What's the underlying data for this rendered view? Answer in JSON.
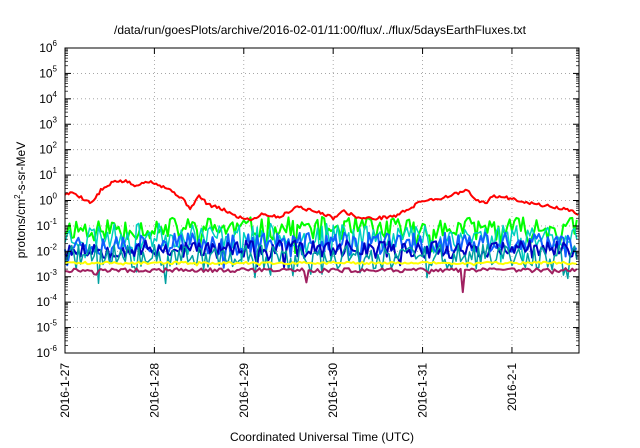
{
  "chart_data": {
    "type": "line",
    "title": "/data/run/goesPlots/archive/2016-02-01/11:00/flux/../flux/5daysEarthFluxes.txt",
    "xlabel": "Coordinated Universal Time (UTC)",
    "ylabel": {
      "base": "protons/cm",
      "sup": "2",
      "rest": "-s-sr-MeV"
    },
    "yscale": "log",
    "ylim": [
      1e-06,
      1000000.0
    ],
    "xlim": [
      "2016-01-27",
      "2016-02-01 18:00"
    ],
    "grid": true,
    "x_ticks": [
      "2016-1-27",
      "2016-1-28",
      "2016-1-29",
      "2016-1-30",
      "2016-1-31",
      "2016-2-1"
    ],
    "y_ticks": [
      {
        "base": "10",
        "exp": "-6"
      },
      {
        "base": "10",
        "exp": "-5"
      },
      {
        "base": "10",
        "exp": "-4"
      },
      {
        "base": "10",
        "exp": "-3"
      },
      {
        "base": "10",
        "exp": "-2"
      },
      {
        "base": "10",
        "exp": "-1"
      },
      {
        "base": "10",
        "exp": "0"
      },
      {
        "base": "10",
        "exp": "1"
      },
      {
        "base": "10",
        "exp": "2"
      },
      {
        "base": "10",
        "exp": "3"
      },
      {
        "base": "10",
        "exp": "4"
      },
      {
        "base": "10",
        "exp": "5"
      },
      {
        "base": "10",
        "exp": "6"
      }
    ],
    "series": [
      {
        "color": "#ff0000",
        "width": 2,
        "x": [
          0,
          0.1,
          0.2,
          0.3,
          0.4,
          0.5,
          0.55,
          0.7,
          0.8,
          0.9,
          1.0,
          1.15,
          1.3,
          1.4,
          1.5,
          1.6,
          1.8,
          1.9,
          2.0,
          2.1,
          2.2,
          2.4,
          2.6,
          2.7,
          2.9,
          3.0,
          3.1,
          3.3,
          3.5,
          3.7,
          3.9,
          4.0,
          4.2,
          4.5,
          4.6,
          4.7,
          4.8,
          5.0,
          5.2,
          5.4,
          5.6,
          5.75
        ],
        "y": [
          1.8,
          2.0,
          1.2,
          0.8,
          2.5,
          4.0,
          6.0,
          5.5,
          3.5,
          6.0,
          5.0,
          3.0,
          1.3,
          0.5,
          1.5,
          0.7,
          0.4,
          0.25,
          0.2,
          0.18,
          0.3,
          0.22,
          0.6,
          0.45,
          0.3,
          0.2,
          0.4,
          0.2,
          0.2,
          0.25,
          0.6,
          1.0,
          1.2,
          2.5,
          1.0,
          0.8,
          1.5,
          1.2,
          0.8,
          0.6,
          0.45,
          0.3
        ]
      },
      {
        "color": "#00ff00",
        "width": 2,
        "base": 0.08,
        "noise": 0.45,
        "seed": 11
      },
      {
        "color": "#00d0c0",
        "width": 1.5,
        "base": 0.04,
        "noise": 0.5,
        "seed": 23
      },
      {
        "color": "#1060ff",
        "width": 2,
        "base": 0.02,
        "noise": 0.45,
        "seed": 37
      },
      {
        "color": "#0000c0",
        "width": 2,
        "base": 0.012,
        "noise": 0.35,
        "seed": 53
      },
      {
        "color": "#00a0a0",
        "width": 1.5,
        "base": 0.006,
        "noise": 0.5,
        "seed": 71
      },
      {
        "color": "#ffff00",
        "width": 2,
        "base": 0.0035,
        "noise": 0.05,
        "seed": 89
      },
      {
        "color": "#a02060",
        "width": 2,
        "base": 0.0018,
        "noise": 0.08,
        "seed": 97
      }
    ]
  }
}
